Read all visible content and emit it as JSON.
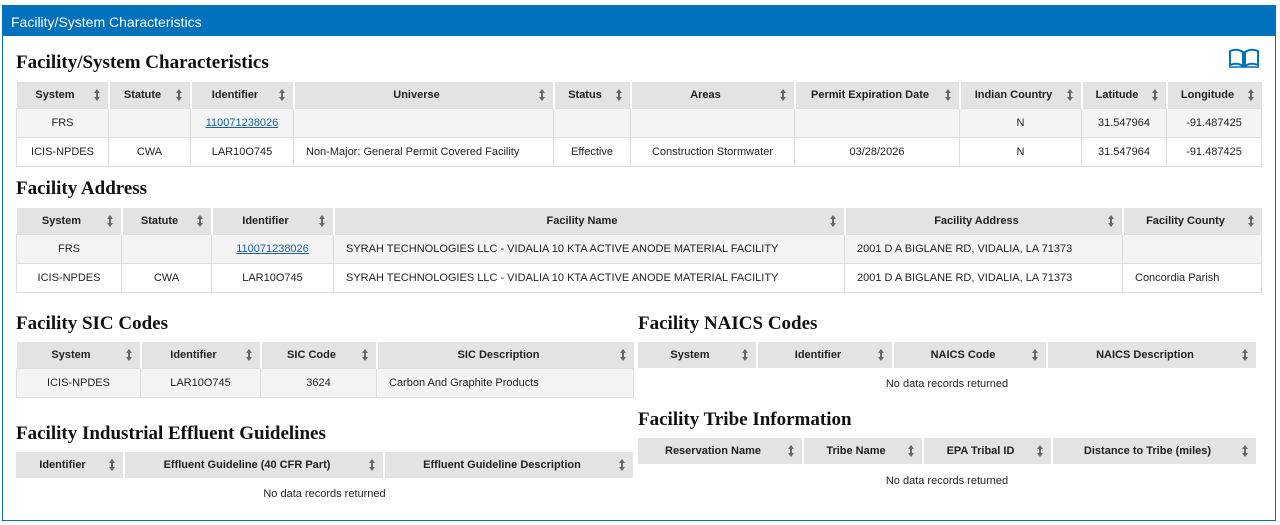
{
  "header": {
    "title": "Facility/System Characteristics"
  },
  "characteristics": {
    "title": "Facility/System Characteristics",
    "columns": [
      "System",
      "Statute",
      "Identifier",
      "Universe",
      "Status",
      "Areas",
      "Permit Expiration Date",
      "Indian Country",
      "Latitude",
      "Longitude"
    ],
    "rows": [
      [
        "FRS",
        null,
        "110071238026",
        null,
        null,
        null,
        null,
        "N",
        "31.547964",
        "-91.487425"
      ],
      [
        "ICIS-NPDES",
        "CWA",
        "LAR10O745",
        "Non-Major: General Permit Covered Facility",
        "Effective",
        "Construction Stormwater",
        "03/28/2026",
        "N",
        "31.547964",
        "-91.487425"
      ]
    ]
  },
  "address": {
    "title": "Facility Address",
    "columns": [
      "System",
      "Statute",
      "Identifier",
      "Facility Name",
      "Facility Address",
      "Facility County"
    ],
    "rows": [
      [
        "FRS",
        null,
        "110071238026",
        "SYRAH TECHNOLOGIES LLC - VIDALIA 10 KTA ACTIVE ANODE MATERIAL FACILITY",
        "2001 D A BIGLANE RD, VIDALIA, LA 71373",
        null
      ],
      [
        "ICIS-NPDES",
        "CWA",
        "LAR10O745",
        "SYRAH TECHNOLOGIES LLC - VIDALIA 10 KTA ACTIVE ANODE MATERIAL FACILITY",
        "2001 D A BIGLANE RD, VIDALIA, LA 71373",
        "Concordia Parish"
      ]
    ]
  },
  "sic": {
    "title": "Facility SIC Codes",
    "columns": [
      "System",
      "Identifier",
      "SIC Code",
      "SIC Description"
    ],
    "rows": [
      [
        "ICIS-NPDES",
        "LAR10O745",
        "3624",
        "Carbon And Graphite Products"
      ]
    ]
  },
  "naics": {
    "title": "Facility NAICS Codes",
    "columns": [
      "System",
      "Identifier",
      "NAICS Code",
      "NAICS Description"
    ],
    "empty": "No data records returned"
  },
  "effluent": {
    "title": "Facility Industrial Effluent Guidelines",
    "columns": [
      "Identifier",
      "Effluent Guideline (40 CFR Part)",
      "Effluent Guideline Description"
    ],
    "empty": "No data records returned"
  },
  "tribe": {
    "title": "Facility Tribe Information",
    "columns": [
      "Reservation Name",
      "Tribe Name",
      "EPA Tribal ID",
      "Distance to Tribe (miles)"
    ],
    "empty": "No data records returned"
  }
}
